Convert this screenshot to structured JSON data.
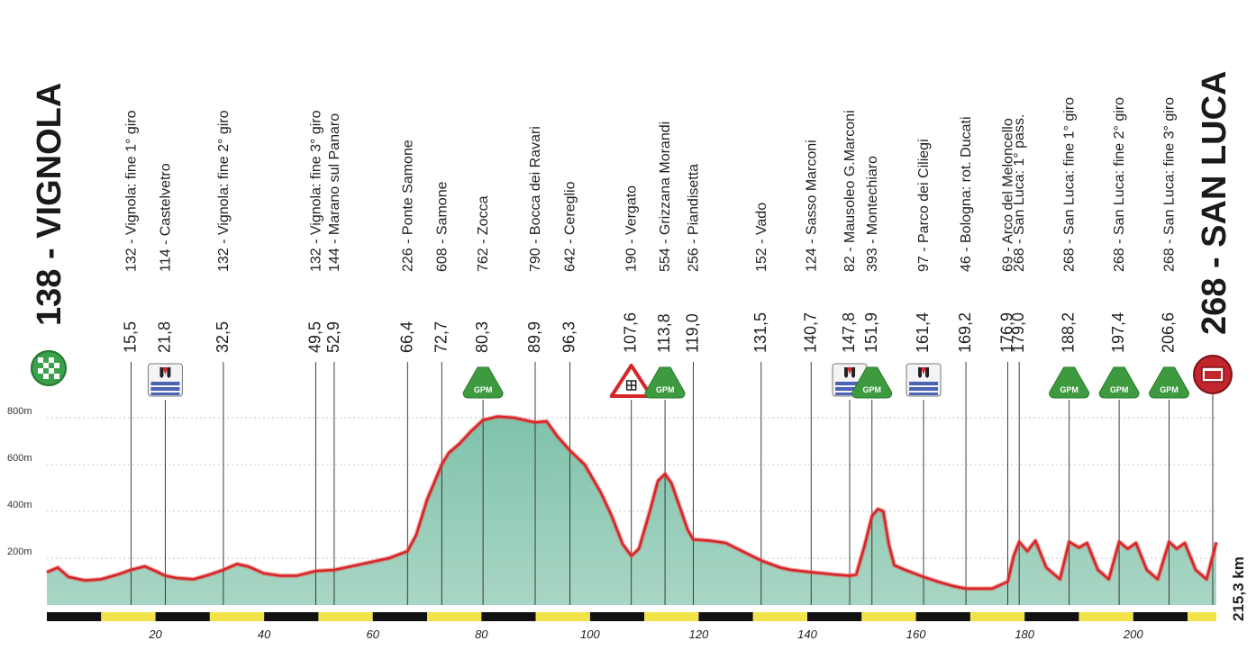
{
  "chart_data": {
    "type": "area",
    "title": "",
    "xlabel": "",
    "ylabel": "",
    "xlim": [
      0,
      215.3
    ],
    "ylim": [
      0,
      900
    ],
    "grid": true,
    "start": {
      "altitude": "138",
      "name": "VIGNOLA"
    },
    "finish": {
      "altitude": "268",
      "name": "SAN LUCA"
    },
    "total_distance_label": "215,3 km",
    "y_ticks": [
      {
        "value": 200,
        "label": "200m"
      },
      {
        "value": 400,
        "label": "400m"
      },
      {
        "value": 600,
        "label": "600m"
      },
      {
        "value": 800,
        "label": "800m"
      }
    ],
    "x_ticks": [
      {
        "value": 20,
        "label": "20"
      },
      {
        "value": 40,
        "label": "40"
      },
      {
        "value": 60,
        "label": "60"
      },
      {
        "value": 80,
        "label": "80"
      },
      {
        "value": 100,
        "label": "100"
      },
      {
        "value": 120,
        "label": "120"
      },
      {
        "value": 140,
        "label": "140"
      },
      {
        "value": 160,
        "label": "160"
      },
      {
        "value": 180,
        "label": "180"
      },
      {
        "value": 200,
        "label": "200"
      }
    ],
    "checkpoints": [
      {
        "km": 15.5,
        "km_label": "15,5",
        "label": "132 - Vignola: fine 1° giro",
        "icon": ""
      },
      {
        "km": 21.8,
        "km_label": "21,8",
        "label": "114 - Castelvetro",
        "icon": "feed-zone"
      },
      {
        "km": 32.5,
        "km_label": "32,5",
        "label": "132 - Vignola: fine 2° giro",
        "icon": ""
      },
      {
        "km": 49.5,
        "km_label": "49,5",
        "label": "132 - Vignola: fine 3° giro",
        "icon": ""
      },
      {
        "km": 52.9,
        "km_label": "52,9",
        "label": "144 - Marano sul Panaro",
        "icon": ""
      },
      {
        "km": 66.4,
        "km_label": "66,4",
        "label": "226 - Ponte Samone",
        "icon": ""
      },
      {
        "km": 72.7,
        "km_label": "72,7",
        "label": "608 - Samone",
        "icon": ""
      },
      {
        "km": 80.3,
        "km_label": "80,3",
        "label": "762 - Zocca",
        "icon": "gpm"
      },
      {
        "km": 89.9,
        "km_label": "89,9",
        "label": "790 - Bocca dei Ravari",
        "icon": ""
      },
      {
        "km": 96.3,
        "km_label": "96,3",
        "label": "642 - Cereglio",
        "icon": ""
      },
      {
        "km": 107.6,
        "km_label": "107,6",
        "label": "190 - Vergato",
        "icon": "rail-crossing"
      },
      {
        "km": 113.8,
        "km_label": "113,8",
        "label": "554 - Grizzana Morandi",
        "icon": "gpm"
      },
      {
        "km": 119.0,
        "km_label": "119,0",
        "label": "256 - Piandisetta",
        "icon": ""
      },
      {
        "km": 131.5,
        "km_label": "131,5",
        "label": "152 - Vado",
        "icon": ""
      },
      {
        "km": 140.7,
        "km_label": "140,7",
        "label": "124 - Sasso Marconi",
        "icon": ""
      },
      {
        "km": 147.8,
        "km_label": "147,8",
        "label": "82 - Mausoleo G.Marconi",
        "icon": "feed-zone"
      },
      {
        "km": 151.9,
        "km_label": "151,9",
        "label": "393 - Montechiaro",
        "icon": "gpm"
      },
      {
        "km": 161.4,
        "km_label": "161,4",
        "label": "97 - Parco dei Ciliegi",
        "icon": "feed-zone"
      },
      {
        "km": 169.2,
        "km_label": "169,2",
        "label": "46 - Bologna: rot. Ducati",
        "icon": ""
      },
      {
        "km": 176.9,
        "km_label": "176,9",
        "label": "69 - Arco del Meloncello",
        "icon": ""
      },
      {
        "km": 179.0,
        "km_label": "179,0",
        "label": "268 - San Luca: 1° pass.",
        "icon": ""
      },
      {
        "km": 188.2,
        "km_label": "188,2",
        "label": "268 - San Luca: fine 1° giro",
        "icon": "gpm"
      },
      {
        "km": 197.4,
        "km_label": "197,4",
        "label": "268 - San Luca: fine 2° giro",
        "icon": "gpm"
      },
      {
        "km": 206.6,
        "km_label": "206,6",
        "label": "268 - San Luca: fine 3° giro",
        "icon": "gpm"
      }
    ],
    "badge_text": {
      "gpm": "GPM"
    },
    "profile": [
      [
        0,
        140
      ],
      [
        2,
        160
      ],
      [
        4,
        120
      ],
      [
        7,
        105
      ],
      [
        10,
        110
      ],
      [
        13,
        130
      ],
      [
        15.5,
        150
      ],
      [
        18,
        165
      ],
      [
        20,
        145
      ],
      [
        21.8,
        125
      ],
      [
        24,
        115
      ],
      [
        27,
        110
      ],
      [
        30,
        130
      ],
      [
        32.5,
        150
      ],
      [
        35,
        175
      ],
      [
        37,
        165
      ],
      [
        40,
        135
      ],
      [
        43,
        125
      ],
      [
        46,
        125
      ],
      [
        49.5,
        145
      ],
      [
        52.9,
        150
      ],
      [
        56,
        165
      ],
      [
        60,
        185
      ],
      [
        63,
        200
      ],
      [
        66.4,
        230
      ],
      [
        68,
        300
      ],
      [
        70,
        450
      ],
      [
        72.7,
        600
      ],
      [
        74,
        650
      ],
      [
        76,
        690
      ],
      [
        78,
        740
      ],
      [
        80.3,
        790
      ],
      [
        83,
        805
      ],
      [
        86,
        800
      ],
      [
        89.9,
        780
      ],
      [
        92,
        785
      ],
      [
        94,
        720
      ],
      [
        96.3,
        660
      ],
      [
        99,
        600
      ],
      [
        102,
        480
      ],
      [
        104,
        380
      ],
      [
        106,
        260
      ],
      [
        107.6,
        210
      ],
      [
        109,
        240
      ],
      [
        111,
        400
      ],
      [
        112.5,
        530
      ],
      [
        113.8,
        560
      ],
      [
        115,
        520
      ],
      [
        116.5,
        420
      ],
      [
        118,
        320
      ],
      [
        119,
        280
      ],
      [
        122,
        275
      ],
      [
        125,
        265
      ],
      [
        128,
        230
      ],
      [
        131.5,
        190
      ],
      [
        135,
        160
      ],
      [
        137,
        150
      ],
      [
        140.7,
        140
      ],
      [
        143,
        135
      ],
      [
        145,
        130
      ],
      [
        147.8,
        125
      ],
      [
        149,
        130
      ],
      [
        150.5,
        250
      ],
      [
        151.9,
        380
      ],
      [
        153,
        410
      ],
      [
        154,
        400
      ],
      [
        155,
        260
      ],
      [
        156,
        170
      ],
      [
        158,
        150
      ],
      [
        161.4,
        120
      ],
      [
        164,
        100
      ],
      [
        167,
        80
      ],
      [
        169.2,
        70
      ],
      [
        172,
        70
      ],
      [
        174,
        70
      ],
      [
        176.9,
        100
      ],
      [
        178,
        210
      ],
      [
        179,
        270
      ],
      [
        180.5,
        230
      ],
      [
        182,
        275
      ],
      [
        184,
        160
      ],
      [
        186.5,
        110
      ],
      [
        188.2,
        270
      ],
      [
        190,
        245
      ],
      [
        191.5,
        265
      ],
      [
        193.5,
        150
      ],
      [
        195.5,
        110
      ],
      [
        197.4,
        270
      ],
      [
        199,
        240
      ],
      [
        200.5,
        265
      ],
      [
        202.5,
        150
      ],
      [
        204.5,
        110
      ],
      [
        206.6,
        270
      ],
      [
        208,
        240
      ],
      [
        209.5,
        265
      ],
      [
        211.5,
        150
      ],
      [
        213.5,
        110
      ],
      [
        215.3,
        268
      ]
    ]
  }
}
